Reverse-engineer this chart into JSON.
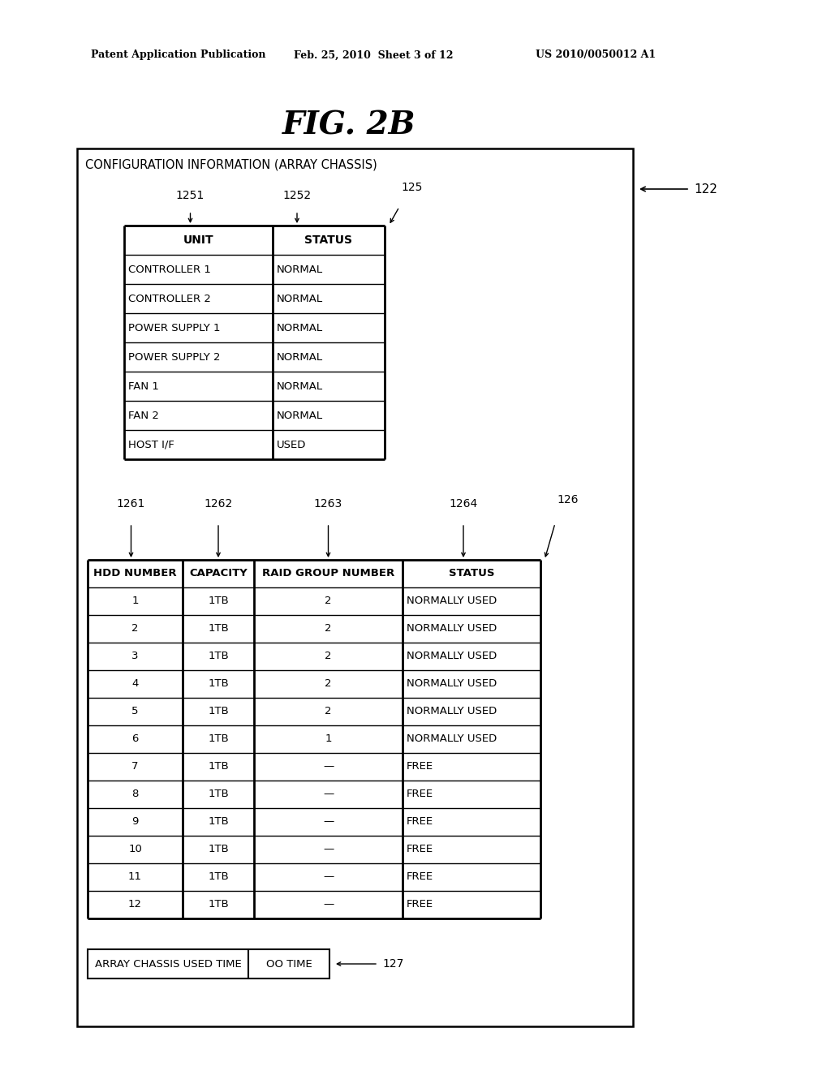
{
  "title": "FIG. 2B",
  "header_line1": "Patent Application Publication",
  "header_line2": "Feb. 25, 2010  Sheet 3 of 12",
  "header_line3": "US 2010/0050012 A1",
  "outer_box_label": "CONFIGURATION INFORMATION (ARRAY CHASSIS)",
  "ref_122": "122",
  "table1_label": "125",
  "table1_col1_label": "1251",
  "table1_col2_label": "1252",
  "table1_headers": [
    "UNIT",
    "STATUS"
  ],
  "table1_rows": [
    [
      "CONTROLLER 1",
      "NORMAL"
    ],
    [
      "CONTROLLER 2",
      "NORMAL"
    ],
    [
      "POWER SUPPLY 1",
      "NORMAL"
    ],
    [
      "POWER SUPPLY 2",
      "NORMAL"
    ],
    [
      "FAN 1",
      "NORMAL"
    ],
    [
      "FAN 2",
      "NORMAL"
    ],
    [
      "HOST I/F",
      "USED"
    ]
  ],
  "table2_label": "126",
  "table2_col1_label": "1261",
  "table2_col2_label": "1262",
  "table2_col3_label": "1263",
  "table2_col4_label": "1264",
  "table2_headers": [
    "HDD NUMBER",
    "CAPACITY",
    "RAID GROUP NUMBER",
    "STATUS"
  ],
  "table2_rows": [
    [
      "1",
      "1TB",
      "2",
      "NORMALLY USED"
    ],
    [
      "2",
      "1TB",
      "2",
      "NORMALLY USED"
    ],
    [
      "3",
      "1TB",
      "2",
      "NORMALLY USED"
    ],
    [
      "4",
      "1TB",
      "2",
      "NORMALLY USED"
    ],
    [
      "5",
      "1TB",
      "2",
      "NORMALLY USED"
    ],
    [
      "6",
      "1TB",
      "1",
      "NORMALLY USED"
    ],
    [
      "7",
      "1TB",
      "—",
      "FREE"
    ],
    [
      "8",
      "1TB",
      "—",
      "FREE"
    ],
    [
      "9",
      "1TB",
      "—",
      "FREE"
    ],
    [
      "10",
      "1TB",
      "—",
      "FREE"
    ],
    [
      "11",
      "1TB",
      "—",
      "FREE"
    ],
    [
      "12",
      "1TB",
      "—",
      "FREE"
    ]
  ],
  "bottom_box_label": "127",
  "bottom_box_left": "ARRAY CHASSIS USED TIME",
  "bottom_box_right": "OO TIME",
  "bg_color": "#ffffff",
  "line_color": "#000000",
  "text_color": "#000000"
}
